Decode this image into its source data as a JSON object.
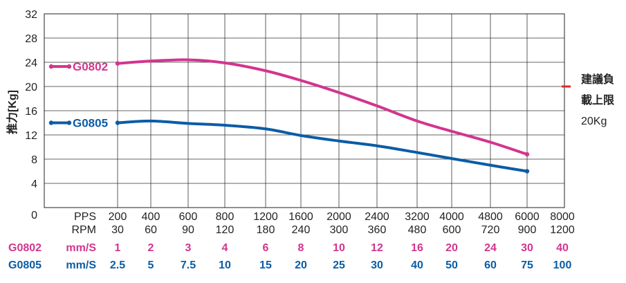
{
  "chart_data": {
    "type": "line",
    "ylabel": "推力[Kg]",
    "ylim": [
      0,
      32
    ],
    "yticks": [
      "0",
      "4",
      "8",
      "12",
      "16",
      "20",
      "24",
      "28",
      "32"
    ],
    "grid": true,
    "columns": [
      {
        "pps": "PPS",
        "rpm": "RPM",
        "g0802": "mm/S",
        "g0805": "mm/S"
      },
      {
        "pps": "200",
        "rpm": "30",
        "g0802": "1",
        "g0805": "2.5"
      },
      {
        "pps": "400",
        "rpm": "60",
        "g0802": "2",
        "g0805": "5"
      },
      {
        "pps": "600",
        "rpm": "90",
        "g0802": "3",
        "g0805": "7.5"
      },
      {
        "pps": "800",
        "rpm": "120",
        "g0802": "4",
        "g0805": "10"
      },
      {
        "pps": "1200",
        "rpm": "180",
        "g0802": "6",
        "g0805": "15"
      },
      {
        "pps": "1600",
        "rpm": "240",
        "g0802": "8",
        "g0805": "20"
      },
      {
        "pps": "2000",
        "rpm": "300",
        "g0802": "10",
        "g0805": "25"
      },
      {
        "pps": "2400",
        "rpm": "360",
        "g0802": "12",
        "g0805": "30"
      },
      {
        "pps": "3200",
        "rpm": "480",
        "g0802": "16",
        "g0805": "40"
      },
      {
        "pps": "4000",
        "rpm": "600",
        "g0802": "20",
        "g0805": "50"
      },
      {
        "pps": "4800",
        "rpm": "720",
        "g0802": "24",
        "g0805": "60"
      },
      {
        "pps": "6000",
        "rpm": "900",
        "g0802": "30",
        "g0805": "75"
      },
      {
        "pps": "8000",
        "rpm": "1200",
        "g0802": "40",
        "g0805": "100"
      }
    ],
    "row_labels": {
      "g0802": "G0802",
      "g0805": "G0805"
    },
    "series": [
      {
        "name": "G0802",
        "color": "#d2358e",
        "low_speed_value": 23.3,
        "x": [
          "200",
          "400",
          "600",
          "800",
          "1200",
          "1600",
          "2000",
          "2400",
          "3200",
          "4000",
          "4800",
          "6000"
        ],
        "y": [
          23.8,
          24.2,
          24.4,
          23.9,
          22.6,
          21.0,
          19.0,
          16.8,
          14.3,
          12.6,
          10.8,
          8.8
        ]
      },
      {
        "name": "G0805",
        "color": "#0b5ca6",
        "low_speed_value": 14.0,
        "x": [
          "200",
          "400",
          "600",
          "800",
          "1200",
          "1600",
          "2000",
          "2400",
          "3200",
          "4000",
          "4800",
          "6000"
        ],
        "y": [
          14.0,
          14.3,
          13.9,
          13.6,
          13.0,
          11.9,
          11.0,
          10.2,
          9.1,
          8.1,
          7.0,
          6.0
        ]
      }
    ],
    "annotation": {
      "lines": [
        "建議負",
        "載上限",
        "20Kg"
      ],
      "value": 20,
      "marker_color": "#e0282c"
    }
  }
}
